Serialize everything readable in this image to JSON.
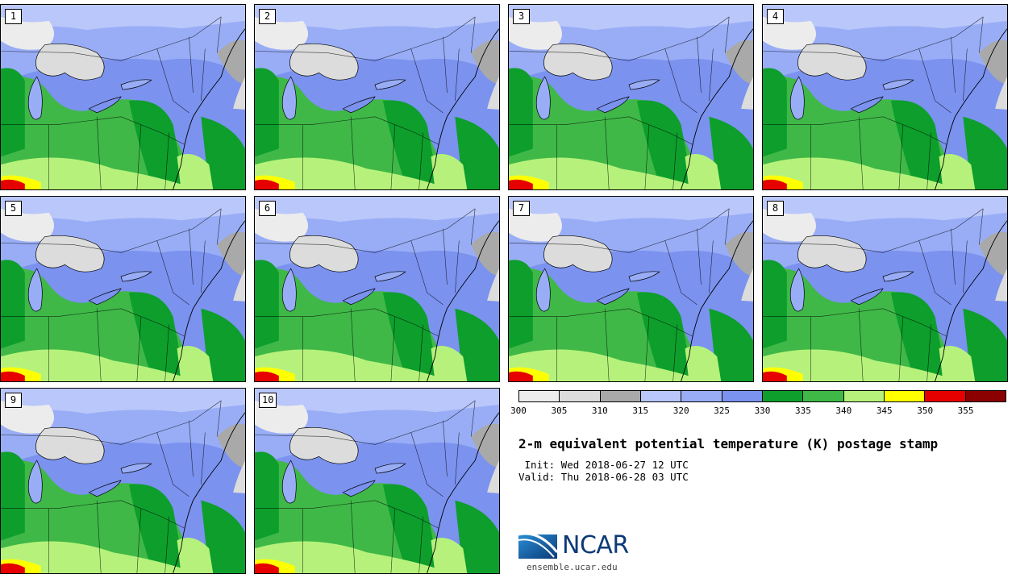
{
  "panels": [
    {
      "label": "1"
    },
    {
      "label": "2"
    },
    {
      "label": "3"
    },
    {
      "label": "4"
    },
    {
      "label": "5"
    },
    {
      "label": "6"
    },
    {
      "label": "7"
    },
    {
      "label": "8"
    },
    {
      "label": "9"
    },
    {
      "label": "10"
    }
  ],
  "colorbar": {
    "colors": [
      "#ececec",
      "#dcdcdc",
      "#a9a9a9",
      "#b9c7fa",
      "#99adf6",
      "#7b92ef",
      "#0d9e2c",
      "#3fb847",
      "#b6f27b",
      "#ffff00",
      "#e60000",
      "#8b0000"
    ],
    "ticks": [
      "300",
      "305",
      "310",
      "315",
      "320",
      "325",
      "330",
      "335",
      "340",
      "345",
      "350",
      "355"
    ]
  },
  "title": "2-m equivalent potential temperature (K) postage stamp",
  "init": " Init: Wed 2018-06-27 12 UTC",
  "valid": "Valid: Thu 2018-06-28 03 UTC",
  "logo": {
    "text": "NCAR",
    "icon": "ncar-logo-icon"
  },
  "site": "ensemble.ucar.edu"
}
